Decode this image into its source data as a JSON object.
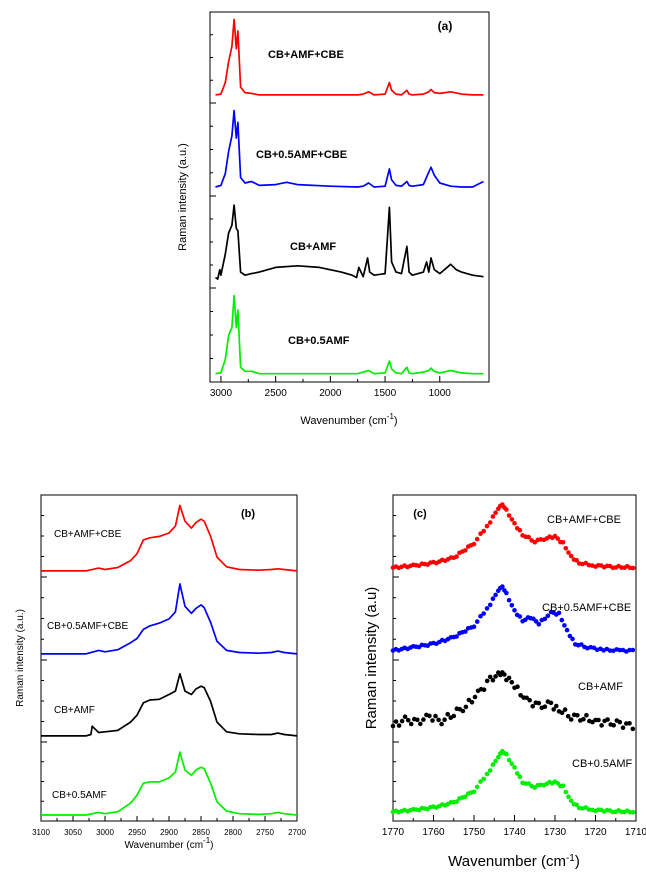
{
  "colors": {
    "red": "#ff0000",
    "blue": "#0000ff",
    "black": "#000000",
    "green": "#00ee00"
  },
  "chart_data": [
    {
      "panel": "(a)",
      "type": "line",
      "xlabel": "Wavenumber (cm",
      "xlabel_sup": "-1",
      "xlabel_tail": ")",
      "ylabel": "Raman intensity (a.u.)",
      "xlim": [
        3100,
        550
      ],
      "xticks": [
        3000,
        2500,
        2000,
        1500,
        1000
      ],
      "series_labels": [
        "CB+AMF+CBE",
        "CB+0.5AMF+CBE",
        "CB+AMF",
        "CB+0.5AMF"
      ],
      "series_colors": [
        "#ff0000",
        "#0000ff",
        "#000000",
        "#00ee00"
      ],
      "series": [
        {
          "name": "CB+AMF+CBE",
          "x": [
            3050,
            3000,
            2960,
            2930,
            2900,
            2880,
            2860,
            2845,
            2820,
            2780,
            2720,
            2650,
            2500,
            2000,
            1750,
            1700,
            1650,
            1600,
            1500,
            1460,
            1440,
            1400,
            1350,
            1300,
            1280,
            1250,
            1150,
            1100,
            1080,
            1050,
            1000,
            900,
            800,
            700,
            600
          ],
          "y": [
            0.02,
            0.03,
            0.18,
            0.45,
            0.65,
            1.0,
            0.62,
            0.85,
            0.12,
            0.05,
            0.04,
            0.02,
            0.02,
            0.02,
            0.02,
            0.03,
            0.06,
            0.02,
            0.03,
            0.18,
            0.08,
            0.03,
            0.02,
            0.08,
            0.03,
            0.02,
            0.03,
            0.06,
            0.09,
            0.05,
            0.04,
            0.06,
            0.03,
            0.02,
            0.02
          ]
        },
        {
          "name": "CB+0.5AMF+CBE",
          "x": [
            3050,
            3000,
            2960,
            2930,
            2900,
            2880,
            2860,
            2845,
            2820,
            2780,
            2720,
            2650,
            2500,
            2400,
            2300,
            2000,
            1750,
            1700,
            1650,
            1600,
            1500,
            1460,
            1440,
            1400,
            1350,
            1300,
            1280,
            1250,
            1150,
            1100,
            1080,
            1050,
            1000,
            900,
            800,
            700,
            600
          ],
          "y": [
            0.03,
            0.05,
            0.2,
            0.48,
            0.68,
            1.0,
            0.65,
            0.85,
            0.15,
            0.08,
            0.1,
            0.05,
            0.06,
            0.09,
            0.06,
            0.04,
            0.03,
            0.04,
            0.08,
            0.03,
            0.04,
            0.26,
            0.12,
            0.05,
            0.04,
            0.1,
            0.05,
            0.04,
            0.06,
            0.22,
            0.28,
            0.18,
            0.08,
            0.04,
            0.03,
            0.03,
            0.1
          ]
        },
        {
          "name": "CB+AMF",
          "x": [
            3050,
            3030,
            3010,
            3000,
            2960,
            2930,
            2900,
            2880,
            2860,
            2845,
            2820,
            2780,
            2720,
            2650,
            2500,
            2300,
            2100,
            1900,
            1800,
            1760,
            1740,
            1700,
            1660,
            1640,
            1600,
            1500,
            1460,
            1440,
            1400,
            1350,
            1300,
            1280,
            1250,
            1150,
            1120,
            1100,
            1080,
            1050,
            1000,
            900,
            850,
            800,
            700,
            600
          ],
          "y": [
            0.05,
            0.03,
            0.15,
            0.08,
            0.35,
            0.62,
            0.72,
            0.98,
            0.68,
            0.65,
            0.12,
            0.08,
            0.1,
            0.12,
            0.18,
            0.2,
            0.18,
            0.12,
            0.08,
            0.05,
            0.18,
            0.06,
            0.3,
            0.12,
            0.08,
            0.1,
            0.95,
            0.25,
            0.12,
            0.1,
            0.45,
            0.12,
            0.08,
            0.12,
            0.25,
            0.12,
            0.3,
            0.15,
            0.1,
            0.22,
            0.15,
            0.12,
            0.08,
            0.06
          ]
        },
        {
          "name": "CB+0.5AMF",
          "x": [
            3050,
            3000,
            2960,
            2930,
            2900,
            2880,
            2860,
            2845,
            2820,
            2780,
            2720,
            2650,
            2500,
            2000,
            1750,
            1700,
            1650,
            1600,
            1500,
            1460,
            1440,
            1400,
            1350,
            1300,
            1280,
            1250,
            1150,
            1100,
            1080,
            1050,
            1000,
            900,
            800,
            700,
            600
          ],
          "y": [
            0.02,
            0.03,
            0.2,
            0.5,
            0.6,
            1.0,
            0.6,
            0.82,
            0.1,
            0.05,
            0.05,
            0.02,
            0.02,
            0.02,
            0.02,
            0.04,
            0.06,
            0.02,
            0.03,
            0.18,
            0.08,
            0.03,
            0.02,
            0.1,
            0.03,
            0.02,
            0.04,
            0.06,
            0.09,
            0.05,
            0.03,
            0.06,
            0.03,
            0.02,
            0.02
          ]
        }
      ]
    },
    {
      "panel": "(b)",
      "type": "line",
      "xlabel": "Wavenumber (cm",
      "xlabel_sup": "-1",
      "xlabel_tail": ")",
      "ylabel": "Raman intensity (a.u.)",
      "xlim": [
        3100,
        2700
      ],
      "xticks": [
        3100,
        3050,
        3000,
        2950,
        2900,
        2850,
        2800,
        2750,
        2700
      ],
      "series_labels": [
        "CB+AMF+CBE",
        "CB+0.5AMF+CBE",
        "CB+AMF",
        "CB+0.5AMF"
      ],
      "series_colors": [
        "#ff0000",
        "#0000ff",
        "#000000",
        "#00ee00"
      ],
      "series": [
        {
          "name": "CB+AMF+CBE",
          "x": [
            3100,
            3030,
            3010,
            3000,
            2980,
            2960,
            2950,
            2940,
            2930,
            2915,
            2900,
            2890,
            2883,
            2875,
            2865,
            2858,
            2850,
            2845,
            2835,
            2825,
            2810,
            2790,
            2760,
            2740,
            2730,
            2720,
            2700
          ],
          "y": [
            0.0,
            0.0,
            0.04,
            0.02,
            0.05,
            0.15,
            0.25,
            0.45,
            0.48,
            0.5,
            0.55,
            0.65,
            0.95,
            0.72,
            0.62,
            0.7,
            0.75,
            0.72,
            0.5,
            0.2,
            0.06,
            0.02,
            0.01,
            0.02,
            0.03,
            0.02,
            0.0
          ]
        },
        {
          "name": "CB+0.5AMF+CBE",
          "x": [
            3100,
            3030,
            3010,
            3000,
            2980,
            2960,
            2950,
            2940,
            2930,
            2915,
            2900,
            2890,
            2883,
            2875,
            2865,
            2858,
            2850,
            2845,
            2835,
            2825,
            2810,
            2790,
            2760,
            2740,
            2730,
            2720,
            2700
          ],
          "y": [
            0.0,
            0.0,
            0.05,
            0.03,
            0.06,
            0.16,
            0.22,
            0.35,
            0.4,
            0.44,
            0.5,
            0.6,
            1.0,
            0.68,
            0.58,
            0.65,
            0.7,
            0.66,
            0.45,
            0.18,
            0.05,
            0.02,
            0.01,
            0.02,
            0.04,
            0.02,
            0.0
          ]
        },
        {
          "name": "CB+AMF",
          "x": [
            3100,
            3030,
            3022,
            3020,
            3010,
            3000,
            2980,
            2960,
            2950,
            2940,
            2930,
            2915,
            2900,
            2890,
            2883,
            2875,
            2865,
            2858,
            2850,
            2845,
            2835,
            2825,
            2810,
            2790,
            2760,
            2740,
            2730,
            2720,
            2700
          ],
          "y": [
            0.0,
            0.0,
            0.02,
            0.14,
            0.05,
            0.06,
            0.08,
            0.2,
            0.3,
            0.48,
            0.52,
            0.53,
            0.6,
            0.65,
            0.9,
            0.65,
            0.6,
            0.68,
            0.72,
            0.7,
            0.5,
            0.2,
            0.06,
            0.03,
            0.02,
            0.02,
            0.04,
            0.02,
            0.0
          ]
        },
        {
          "name": "CB+0.5AMF",
          "x": [
            3100,
            3030,
            3010,
            3000,
            2980,
            2960,
            2950,
            2940,
            2930,
            2915,
            2900,
            2890,
            2883,
            2875,
            2865,
            2858,
            2850,
            2845,
            2835,
            2825,
            2810,
            2790,
            2760,
            2740,
            2730,
            2720,
            2700
          ],
          "y": [
            0.0,
            0.0,
            0.04,
            0.02,
            0.05,
            0.18,
            0.3,
            0.48,
            0.5,
            0.5,
            0.56,
            0.65,
            0.95,
            0.68,
            0.6,
            0.68,
            0.72,
            0.7,
            0.48,
            0.2,
            0.06,
            0.02,
            0.01,
            0.02,
            0.04,
            0.02,
            0.0
          ]
        }
      ]
    },
    {
      "panel": "(c)",
      "type": "scatter",
      "xlabel": "Wavenumber (cm",
      "xlabel_sup": "-1",
      "xlabel_tail": ")",
      "ylabel": "Raman intensity (a.u)",
      "xlim": [
        1770,
        1710
      ],
      "xticks": [
        1770,
        1760,
        1750,
        1740,
        1730,
        1720,
        1710
      ],
      "series_labels": [
        "CB+AMF+CBE",
        "CB+0.5AMF+CBE",
        "CB+AMF",
        "CB+0.5AMF"
      ],
      "series_colors": [
        "#ff0000",
        "#0000ff",
        "#000000",
        "#00ee00"
      ],
      "series": [
        {
          "name": "CB+AMF+CBE",
          "x": [
            1770,
            1765,
            1760,
            1755,
            1750,
            1746,
            1744,
            1743,
            1742,
            1740,
            1738,
            1735,
            1732,
            1730,
            1728,
            1726,
            1724,
            1720,
            1715,
            1710
          ],
          "y": [
            0.05,
            0.08,
            0.12,
            0.2,
            0.42,
            0.75,
            0.95,
            1.0,
            0.92,
            0.72,
            0.55,
            0.45,
            0.5,
            0.52,
            0.42,
            0.22,
            0.12,
            0.08,
            0.06,
            0.05
          ]
        },
        {
          "name": "CB+0.5AMF+CBE",
          "x": [
            1770,
            1765,
            1760,
            1755,
            1750,
            1746,
            1744,
            1743,
            1742,
            1740,
            1738,
            1736,
            1734,
            1731,
            1729,
            1727,
            1725,
            1722,
            1718,
            1714,
            1710
          ],
          "y": [
            0.05,
            0.1,
            0.15,
            0.25,
            0.42,
            0.75,
            0.95,
            1.0,
            0.9,
            0.65,
            0.5,
            0.55,
            0.45,
            0.62,
            0.6,
            0.35,
            0.15,
            0.1,
            0.06,
            0.05,
            0.05
          ]
        },
        {
          "name": "CB+AMF",
          "x": [
            1770,
            1767,
            1764,
            1761,
            1758,
            1755,
            1752,
            1749,
            1746,
            1744,
            1743,
            1742,
            1740,
            1737,
            1734,
            1731,
            1729,
            1726,
            1723,
            1720,
            1717,
            1714,
            1710
          ],
          "y": [
            0.15,
            0.25,
            0.2,
            0.3,
            0.22,
            0.35,
            0.45,
            0.65,
            0.85,
            0.95,
            1.0,
            0.9,
            0.75,
            0.55,
            0.45,
            0.48,
            0.4,
            0.3,
            0.28,
            0.22,
            0.2,
            0.18,
            0.15
          ]
        },
        {
          "name": "CB+0.5AMF",
          "x": [
            1770,
            1765,
            1760,
            1755,
            1750,
            1746,
            1744,
            1743,
            1742,
            1740,
            1738,
            1735,
            1732,
            1730,
            1728,
            1726,
            1724,
            1720,
            1715,
            1710
          ],
          "y": [
            0.05,
            0.08,
            0.12,
            0.2,
            0.38,
            0.72,
            0.92,
            1.0,
            0.95,
            0.75,
            0.52,
            0.45,
            0.5,
            0.52,
            0.45,
            0.22,
            0.12,
            0.08,
            0.06,
            0.05
          ]
        }
      ]
    }
  ]
}
